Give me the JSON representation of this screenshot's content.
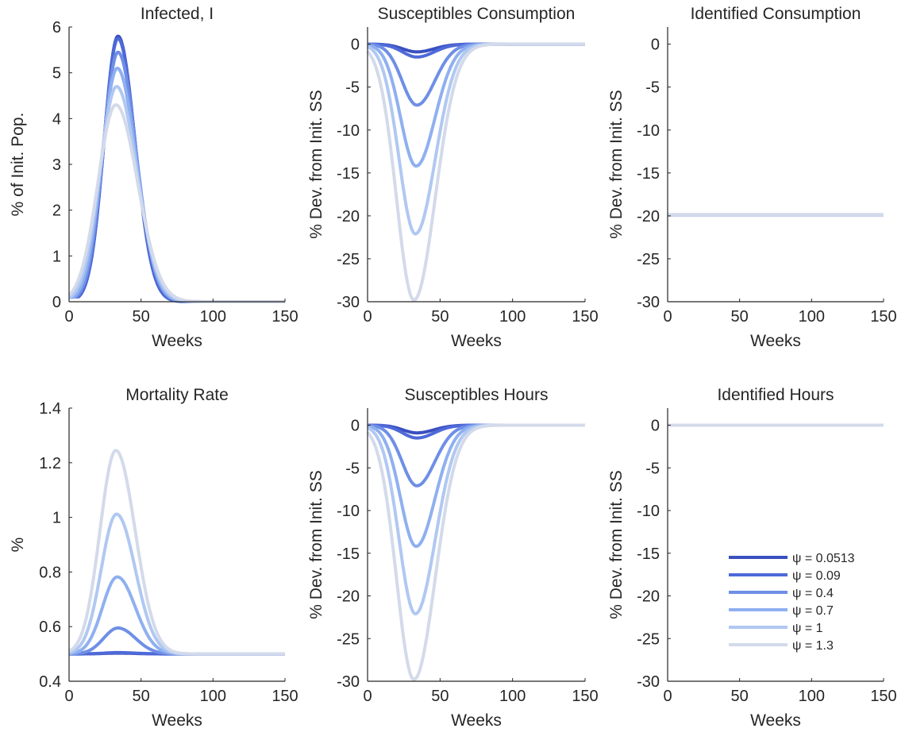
{
  "colors": [
    "#3a4fbf",
    "#4e69d8",
    "#6f8fe6",
    "#8fb0f0",
    "#b0c8f2",
    "#d3daea"
  ],
  "chart_data": [
    {
      "type": "line",
      "title": "Infected, I",
      "xlabel": "Weeks",
      "ylabel": "% of Init. Pop.",
      "xlim": [
        0,
        150
      ],
      "ylim": [
        0,
        6
      ],
      "xticks": [
        0,
        50,
        100,
        150
      ],
      "yticks": [
        0,
        1,
        2,
        3,
        4,
        5,
        6
      ],
      "curve": "bell",
      "baseline": 0,
      "peak_x": [
        34,
        34,
        34,
        33.5,
        33,
        32.5
      ],
      "peak_y": [
        5.8,
        5.75,
        5.45,
        5.1,
        4.7,
        4.3
      ],
      "width": [
        10.5,
        10.6,
        11.2,
        11.8,
        12.6,
        13.5
      ]
    },
    {
      "type": "line",
      "title": "Susceptibles Consumption",
      "xlabel": "Weeks",
      "ylabel": "% Dev. from Init. SS",
      "xlim": [
        0,
        150
      ],
      "ylim": [
        -30,
        2
      ],
      "xticks": [
        0,
        50,
        100,
        150
      ],
      "yticks": [
        -30,
        -25,
        -20,
        -15,
        -10,
        -5,
        0
      ],
      "curve": "bell",
      "baseline": 0,
      "peak_x": [
        34,
        34,
        34,
        33.5,
        33,
        32
      ],
      "peak_y": [
        -0.9,
        -1.5,
        -7.1,
        -14.2,
        -22.1,
        -29.8
      ],
      "width": [
        10.5,
        10.6,
        11,
        11.6,
        12.2,
        13
      ]
    },
    {
      "type": "line",
      "title": "Identified Consumption",
      "xlabel": "Weeks",
      "ylabel": "% Dev. from Init. SS",
      "xlim": [
        0,
        150
      ],
      "ylim": [
        -30,
        2
      ],
      "xticks": [
        0,
        50,
        100,
        150
      ],
      "yticks": [
        -30,
        -25,
        -20,
        -15,
        -10,
        -5,
        0
      ],
      "curve": "flat",
      "baseline": -19.9
    },
    {
      "type": "line",
      "title": "Mortality Rate",
      "xlabel": "Weeks",
      "ylabel": "%",
      "xlim": [
        0,
        150
      ],
      "ylim": [
        0.4,
        1.4
      ],
      "xticks": [
        0,
        50,
        100,
        150
      ],
      "yticks": [
        0.4,
        0.6,
        0.8,
        1,
        1.2,
        1.4
      ],
      "curve": "bell",
      "baseline": 0.5,
      "peak_x": [
        34,
        34,
        34,
        33.5,
        33,
        32.5
      ],
      "peak_y": [
        0.503,
        0.505,
        0.595,
        0.782,
        1.012,
        1.245
      ],
      "width": [
        10.5,
        10.6,
        10.8,
        11.2,
        11.6,
        12
      ]
    },
    {
      "type": "line",
      "title": "Susceptibles Hours",
      "xlabel": "Weeks",
      "ylabel": "% Dev. from Init. SS",
      "xlim": [
        0,
        150
      ],
      "ylim": [
        -30,
        2
      ],
      "xticks": [
        0,
        50,
        100,
        150
      ],
      "yticks": [
        -30,
        -25,
        -20,
        -15,
        -10,
        -5,
        0
      ],
      "curve": "bell",
      "baseline": 0,
      "peak_x": [
        34,
        34,
        34,
        33.5,
        33,
        32
      ],
      "peak_y": [
        -0.9,
        -1.5,
        -7.1,
        -14.2,
        -22.1,
        -29.8
      ],
      "width": [
        10.5,
        10.6,
        11,
        11.6,
        12.2,
        13
      ]
    },
    {
      "type": "line",
      "title": "Identified Hours",
      "xlabel": "Weeks",
      "ylabel": "% Dev. from Init. SS",
      "xlim": [
        0,
        150
      ],
      "ylim": [
        -30,
        2
      ],
      "xticks": [
        0,
        50,
        100,
        150
      ],
      "yticks": [
        -30,
        -25,
        -20,
        -15,
        -10,
        -5,
        0
      ],
      "curve": "flat",
      "baseline": 0,
      "legend": {
        "position": "bottom-right",
        "entries": [
          "ψ = 0.0513",
          "ψ = 0.09",
          "ψ = 0.4",
          "ψ = 0.7",
          "ψ = 1",
          "ψ = 1.3"
        ]
      }
    }
  ]
}
